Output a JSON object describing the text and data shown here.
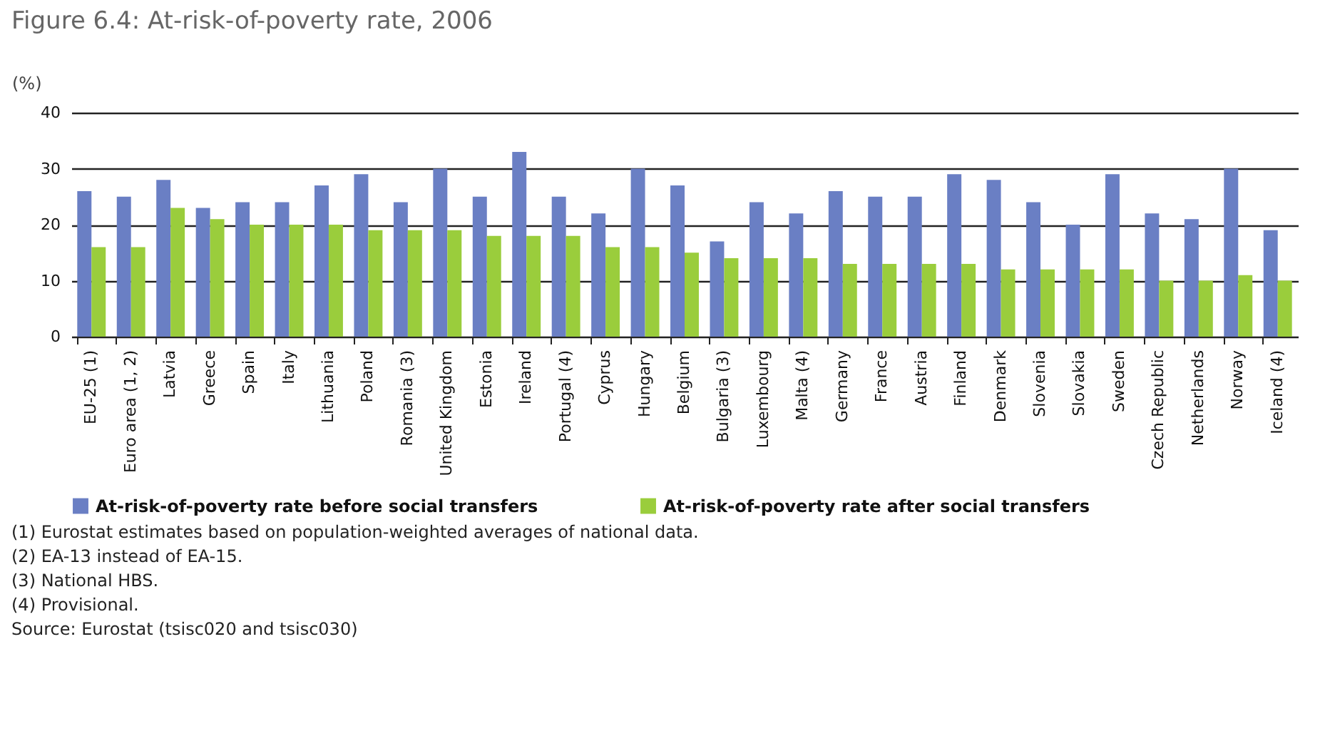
{
  "chart_data": {
    "type": "bar",
    "title": "Figure 6.4: At-risk-of-poverty rate, 2006",
    "ylabel": "(%)",
    "categories": [
      "EU-25 (1)",
      "Euro area (1, 2)",
      "Latvia",
      "Greece",
      "Spain",
      "Italy",
      "Lithuania",
      "Poland",
      "Romania (3)",
      "United Kingdom",
      "Estonia",
      "Ireland",
      "Portugal (4)",
      "Cyprus",
      "Hungary",
      "Belgium",
      "Bulgaria (3)",
      "Luxembourg",
      "Malta (4)",
      "Germany",
      "France",
      "Austria",
      "Finland",
      "Denmark",
      "Slovenia",
      "Slovakia",
      "Sweden",
      "Czech Republic",
      "Netherlands",
      "Norway",
      "Iceland (4)"
    ],
    "series": [
      {
        "name": "At-risk-of-poverty rate before social transfers",
        "color": "#6a7fc4",
        "values": [
          26,
          25,
          28,
          23,
          24,
          24,
          27,
          29,
          24,
          30,
          25,
          33,
          25,
          22,
          30,
          27,
          17,
          24,
          22,
          26,
          25,
          25,
          29,
          28,
          24,
          20,
          29,
          22,
          21,
          30,
          19
        ]
      },
      {
        "name": "At-risk-of-poverty rate after social transfers",
        "color": "#9acd3c",
        "values": [
          16,
          16,
          23,
          21,
          20,
          20,
          20,
          19,
          19,
          19,
          18,
          18,
          18,
          16,
          16,
          15,
          14,
          14,
          14,
          13,
          13,
          13,
          13,
          12,
          12,
          12,
          12,
          10,
          10,
          11,
          10
        ]
      }
    ],
    "ylim": [
      0,
      40
    ],
    "yticks": [
      0,
      10,
      20,
      30,
      40
    ],
    "grid": "y",
    "legend": "bottom",
    "annotations": [
      "(1) Eurostat estimates based on population-weighted averages of national data.",
      "(2) EA-13 instead of EA-15.",
      "(3) National HBS.",
      "(4) Provisional.",
      "Source: Eurostat (tsisc020 and tsisc030)"
    ]
  }
}
